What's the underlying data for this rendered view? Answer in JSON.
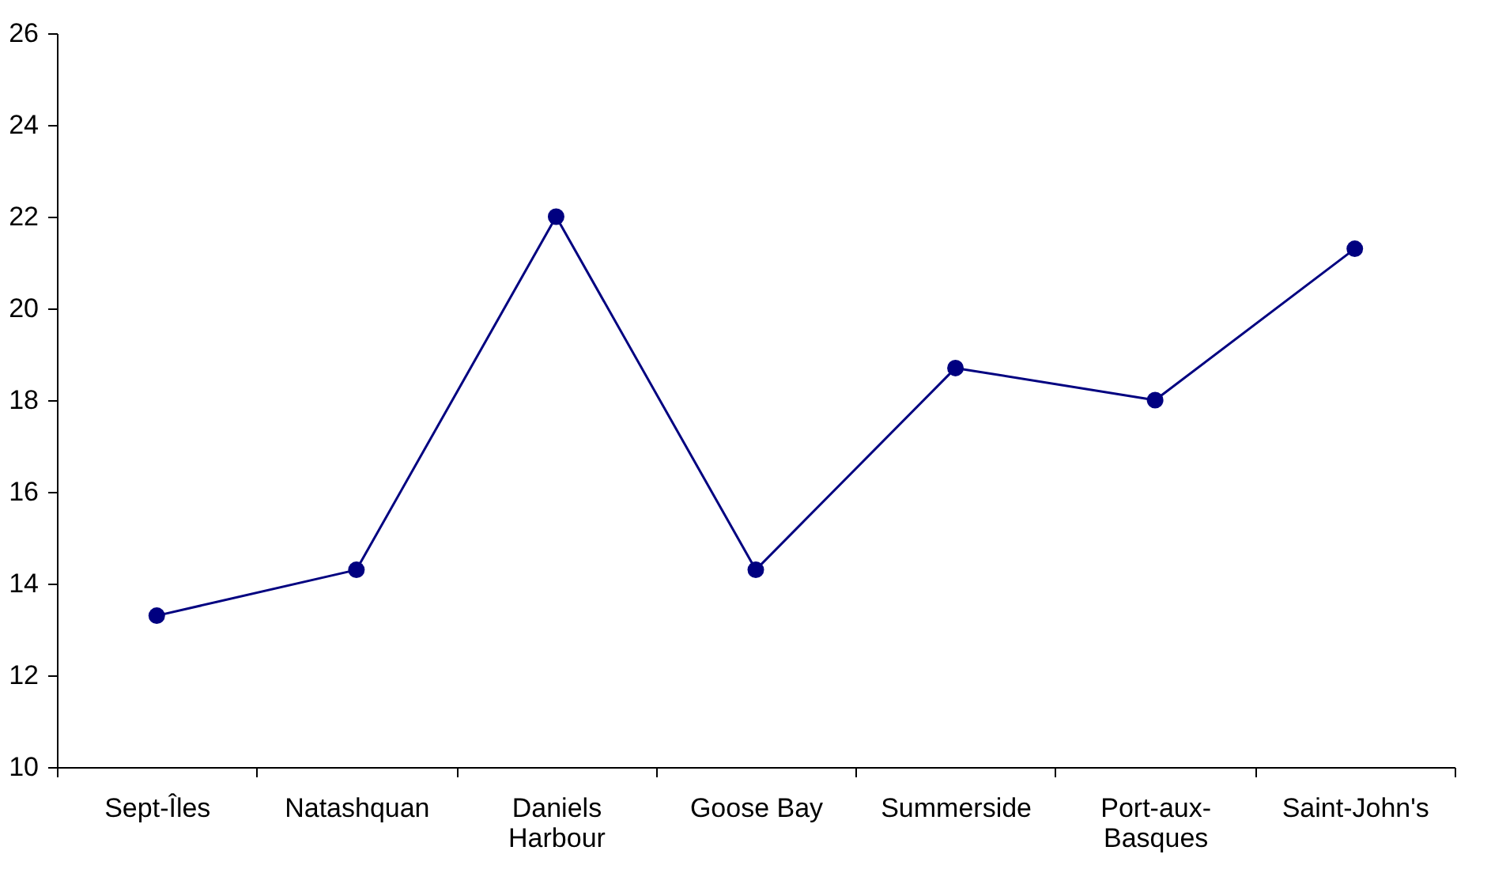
{
  "chart_data": {
    "type": "line",
    "categories": [
      "Sept-Îles",
      "Natashquan",
      "Daniels Harbour",
      "Goose Bay",
      "Summerside",
      "Port-aux-Basques",
      "Saint-John's"
    ],
    "series": [
      {
        "color": "#000080",
        "values": [
          13.3,
          14.3,
          22.0,
          14.3,
          18.7,
          18.0,
          21.3
        ]
      }
    ],
    "ylim": [
      10,
      26
    ],
    "yticks": [
      10,
      12,
      14,
      16,
      18,
      20,
      22,
      24,
      26
    ],
    "marker": "circle",
    "line_style": "solid"
  }
}
